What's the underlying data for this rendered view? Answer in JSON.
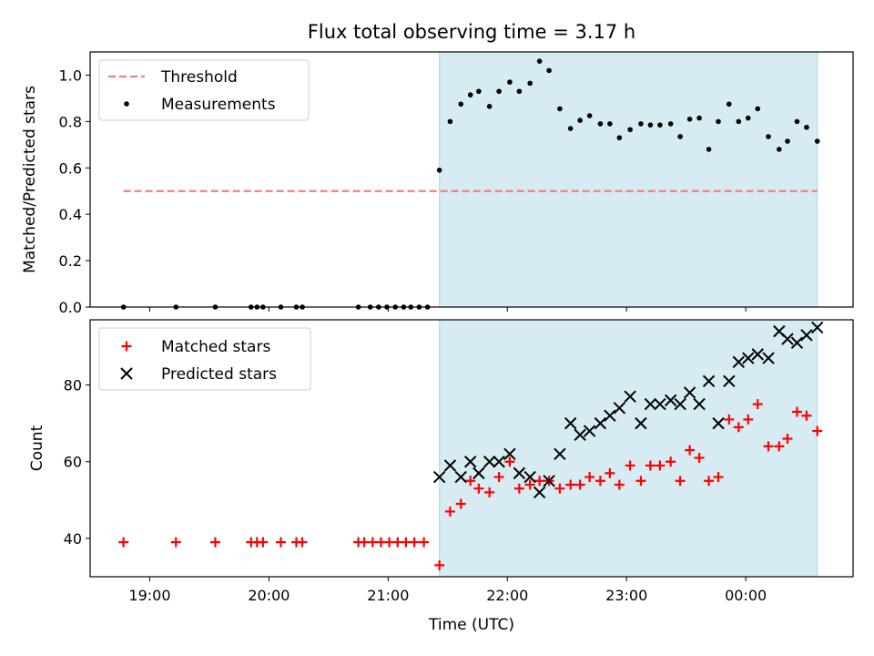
{
  "figure": {
    "title": "Flux total observing time = 3.17 h",
    "xlabel": "Time (UTC)",
    "xticks": [
      {
        "t": 19.0,
        "label": "19:00"
      },
      {
        "t": 20.0,
        "label": "20:00"
      },
      {
        "t": 21.0,
        "label": "21:00"
      },
      {
        "t": 22.0,
        "label": "22:00"
      },
      {
        "t": 23.0,
        "label": "23:00"
      },
      {
        "t": 24.0,
        "label": "00:00"
      }
    ],
    "shaded_span": {
      "start": 21.43,
      "end": 24.6,
      "color": "#add8e6"
    }
  },
  "chart_data": [
    {
      "type": "line",
      "ylabel": "Matched/Predicted stars",
      "xlim": [
        18.5,
        24.9
      ],
      "ylim": [
        0,
        1.1
      ],
      "yticks": [
        "0.0",
        "0.2",
        "0.4",
        "0.6",
        "0.8",
        "1.0"
      ],
      "legend": {
        "placement": "top-left",
        "entries": [
          "Threshold",
          "Measurements"
        ]
      },
      "threshold": {
        "name": "Threshold",
        "value": 0.5,
        "x_range": [
          18.78,
          24.6
        ],
        "color": "#f08080",
        "style": "dashed"
      },
      "measurements": {
        "name": "Measurements",
        "color": "#000000",
        "marker": "dot",
        "x": [
          18.78,
          19.22,
          19.55,
          19.85,
          19.9,
          19.95,
          20.1,
          20.23,
          20.28,
          20.75,
          20.85,
          20.92,
          20.99,
          21.06,
          21.13,
          21.19,
          21.26,
          21.33,
          21.43,
          21.52,
          21.61,
          21.69,
          21.76,
          21.85,
          21.93,
          22.02,
          22.1,
          22.19,
          22.27,
          22.35,
          22.44,
          22.53,
          22.61,
          22.69,
          22.78,
          22.86,
          22.94,
          23.03,
          23.12,
          23.2,
          23.28,
          23.37,
          23.45,
          23.53,
          23.61,
          23.69,
          23.77,
          23.86,
          23.94,
          24.02,
          24.1,
          24.19,
          24.28,
          24.35,
          24.43,
          24.51,
          24.6
        ],
        "y": [
          0,
          0,
          0,
          0,
          0,
          0,
          0,
          0,
          0,
          0,
          0,
          0,
          0,
          0,
          0,
          0,
          0,
          0,
          0.59,
          0.8,
          0.875,
          0.915,
          0.93,
          0.865,
          0.93,
          0.97,
          0.93,
          0.965,
          1.06,
          1.02,
          0.855,
          0.77,
          0.805,
          0.825,
          0.79,
          0.79,
          0.73,
          0.765,
          0.79,
          0.785,
          0.785,
          0.79,
          0.735,
          0.81,
          0.815,
          0.68,
          0.8,
          0.875,
          0.8,
          0.815,
          0.855,
          0.735,
          0.68,
          0.715,
          0.8,
          0.775,
          0.715
        ]
      }
    },
    {
      "type": "scatter",
      "ylabel": "Count",
      "xlim": [
        18.5,
        24.9
      ],
      "ylim": [
        30,
        97
      ],
      "yticks": [
        "40",
        "60",
        "80"
      ],
      "legend": {
        "placement": "top-left",
        "entries": [
          "Matched stars",
          "Predicted stars"
        ]
      },
      "series": [
        {
          "name": "Matched stars",
          "color": "#ff0000",
          "marker": "plus",
          "x": [
            18.78,
            19.22,
            19.55,
            19.85,
            19.9,
            19.95,
            20.1,
            20.23,
            20.28,
            20.75,
            20.8,
            20.87,
            20.94,
            21.01,
            21.08,
            21.15,
            21.22,
            21.3,
            21.43,
            21.52,
            21.61,
            21.69,
            21.76,
            21.85,
            21.93,
            22.02,
            22.1,
            22.19,
            22.27,
            22.35,
            22.44,
            22.53,
            22.61,
            22.69,
            22.78,
            22.86,
            22.94,
            23.03,
            23.12,
            23.2,
            23.28,
            23.37,
            23.45,
            23.53,
            23.61,
            23.69,
            23.77,
            23.86,
            23.94,
            24.02,
            24.1,
            24.19,
            24.28,
            24.35,
            24.43,
            24.51,
            24.6
          ],
          "y": [
            39,
            39,
            39,
            39,
            39,
            39,
            39,
            39,
            39,
            39,
            39,
            39,
            39,
            39,
            39,
            39,
            39,
            39,
            33,
            47,
            49,
            55,
            53,
            52,
            56,
            60,
            53,
            54,
            55,
            55,
            53,
            54,
            54,
            56,
            55,
            57,
            54,
            59,
            55,
            59,
            59,
            60,
            55,
            63,
            61,
            55,
            56,
            71,
            69,
            71,
            75,
            64,
            64,
            66,
            73,
            72,
            68
          ]
        },
        {
          "name": "Predicted stars",
          "color": "#000000",
          "marker": "x",
          "x": [
            21.43,
            21.52,
            21.61,
            21.69,
            21.76,
            21.85,
            21.93,
            22.02,
            22.1,
            22.19,
            22.27,
            22.35,
            22.44,
            22.53,
            22.61,
            22.69,
            22.78,
            22.86,
            22.94,
            23.03,
            23.12,
            23.2,
            23.28,
            23.37,
            23.45,
            23.53,
            23.61,
            23.69,
            23.77,
            23.86,
            23.94,
            24.02,
            24.1,
            24.19,
            24.28,
            24.35,
            24.43,
            24.51,
            24.6
          ],
          "y": [
            56,
            59,
            56,
            60,
            57,
            60,
            60,
            62,
            57,
            56,
            52,
            55,
            62,
            70,
            67,
            68,
            70,
            72,
            74,
            77,
            70,
            75,
            75,
            76,
            75,
            78,
            75,
            81,
            70,
            81,
            86,
            87,
            88,
            87,
            94,
            92,
            91,
            93,
            95
          ]
        }
      ]
    }
  ]
}
